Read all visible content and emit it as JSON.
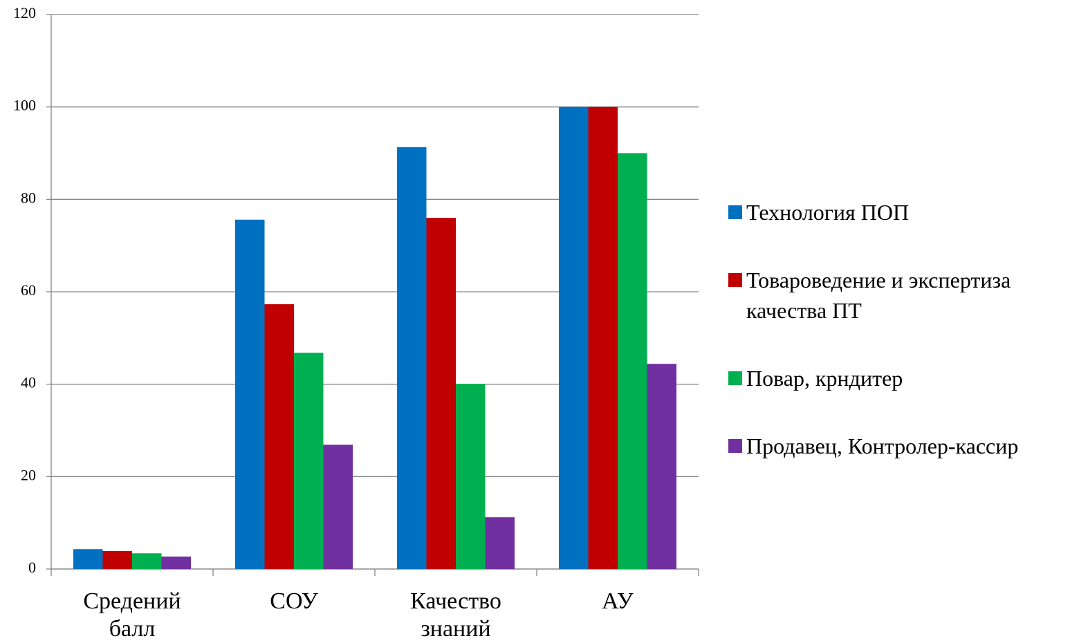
{
  "chart_data": {
    "type": "bar",
    "categories": [
      "Средений балл",
      "СОУ",
      "Качество знаний",
      "АУ"
    ],
    "series": [
      {
        "name": "Технология ПОП",
        "color": "#0070c0",
        "values": [
          4.3,
          75.6,
          91.3,
          100
        ]
      },
      {
        "name": "Товароведение и экспертиза качества ПТ",
        "color": "#c00000",
        "values": [
          3.9,
          57.3,
          76.0,
          100
        ]
      },
      {
        "name": "Повар, крндитер",
        "color": "#00b050",
        "values": [
          3.4,
          46.8,
          40.1,
          90
        ]
      },
      {
        "name": "Продавец, Контролер-кассир",
        "color": "#7030a0",
        "values": [
          2.7,
          26.9,
          11.2,
          44.4
        ]
      }
    ],
    "ylim": [
      0,
      120
    ],
    "yticks": [
      0,
      20,
      40,
      60,
      80,
      100,
      120
    ],
    "grid": true,
    "legend": "right"
  }
}
